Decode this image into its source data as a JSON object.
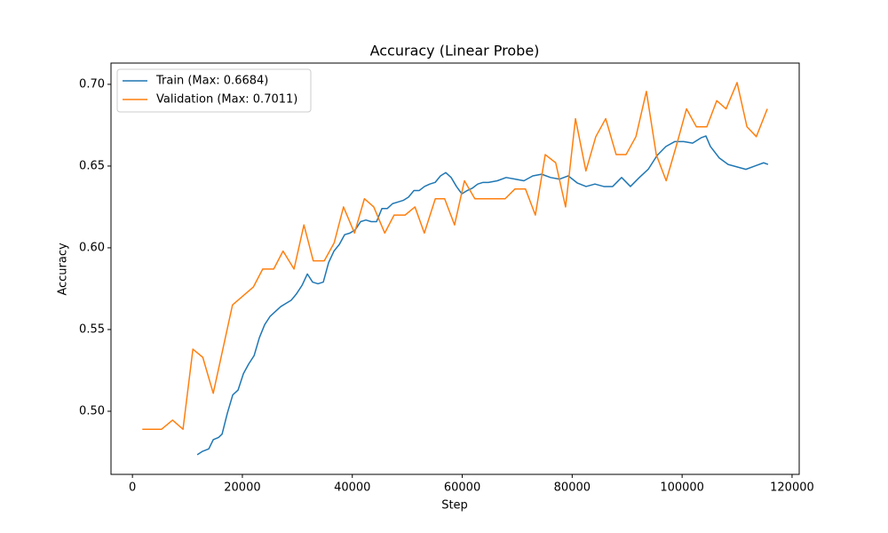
{
  "chart_data": {
    "type": "line",
    "title": "Accuracy (Linear Probe)",
    "xlabel": "Step",
    "ylabel": "Accuracy",
    "xlim": [
      -3900,
      121300
    ],
    "ylim": [
      0.4614,
      0.713
    ],
    "xticks": [
      0,
      20000,
      40000,
      60000,
      80000,
      100000,
      120000
    ],
    "yticks": [
      {
        "value": 0.5,
        "label": "0.50"
      },
      0.55,
      {
        "value": 0.6,
        "label": "0.60"
      },
      0.65,
      {
        "value": 0.7,
        "label": "0.70"
      }
    ],
    "grid": false,
    "legend": "upper-left",
    "series": [
      {
        "name": "Train (Max: 0.6684)",
        "color": "#1f77b4",
        "x": [
          11790,
          12760,
          13890,
          14700,
          15670,
          16310,
          17280,
          18250,
          19220,
          20190,
          21160,
          22130,
          23090,
          24060,
          25030,
          26000,
          26970,
          27940,
          28910,
          29880,
          30850,
          31820,
          32780,
          33750,
          34720,
          35690,
          36660,
          37630,
          38600,
          39570,
          40540,
          41510,
          42470,
          43440,
          44410,
          45380,
          46350,
          47320,
          48290,
          49260,
          50230,
          51200,
          52160,
          53130,
          54100,
          55070,
          56040,
          57010,
          57980,
          58950,
          59920,
          60890,
          61850,
          62820,
          63790,
          64760,
          66380,
          67990,
          69610,
          71220,
          72840,
          74450,
          76070,
          77680,
          79300,
          80910,
          82530,
          84140,
          85760,
          87370,
          88990,
          90600,
          92220,
          93830,
          95450,
          97060,
          98680,
          100290,
          101910,
          103520,
          104330,
          105140,
          106750,
          108370,
          109980,
          111600,
          113210,
          114830,
          115630
        ],
        "values": [
          0.4734,
          0.4755,
          0.477,
          0.4826,
          0.484,
          0.486,
          0.499,
          0.51,
          0.513,
          0.523,
          0.529,
          0.534,
          0.545,
          0.553,
          0.558,
          0.561,
          0.564,
          0.566,
          0.568,
          0.572,
          0.577,
          0.584,
          0.579,
          0.578,
          0.579,
          0.591,
          0.598,
          0.602,
          0.608,
          0.609,
          0.611,
          0.616,
          0.617,
          0.616,
          0.616,
          0.624,
          0.624,
          0.627,
          0.628,
          0.629,
          0.631,
          0.635,
          0.635,
          0.6375,
          0.639,
          0.64,
          0.644,
          0.646,
          0.643,
          0.6375,
          0.633,
          0.635,
          0.6365,
          0.639,
          0.64,
          0.64,
          0.641,
          0.643,
          0.642,
          0.641,
          0.644,
          0.645,
          0.643,
          0.642,
          0.644,
          0.6397,
          0.6375,
          0.639,
          0.6375,
          0.6375,
          0.643,
          0.6375,
          0.643,
          0.648,
          0.6565,
          0.662,
          0.665,
          0.665,
          0.664,
          0.6674,
          0.6684,
          0.662,
          0.655,
          0.651,
          0.6495,
          0.648,
          0.65,
          0.652,
          0.651
        ]
      },
      {
        "name": "Validation (Max: 0.7011)",
        "color": "#ff7f0e",
        "x": [
          1800,
          5300,
          7300,
          9200,
          11000,
          12800,
          14700,
          18200,
          22000,
          23700,
          25700,
          27400,
          29400,
          31200,
          32900,
          34900,
          36700,
          38400,
          40400,
          42200,
          43900,
          45900,
          47600,
          49600,
          51400,
          53100,
          55100,
          56800,
          58600,
          60400,
          62300,
          64100,
          66100,
          67800,
          69600,
          71500,
          73300,
          75100,
          77000,
          78800,
          80600,
          82500,
          84300,
          86100,
          88000,
          89800,
          91600,
          93500,
          95300,
          97100,
          99000,
          100800,
          102600,
          104500,
          106300,
          108000,
          110000,
          111800,
          113500,
          115500
        ],
        "values": [
          0.489,
          0.489,
          0.4946,
          0.489,
          0.538,
          0.533,
          0.511,
          0.565,
          0.576,
          0.587,
          0.587,
          0.598,
          0.587,
          0.614,
          0.592,
          0.592,
          0.603,
          0.625,
          0.609,
          0.63,
          0.625,
          0.609,
          0.62,
          0.62,
          0.625,
          0.609,
          0.63,
          0.63,
          0.614,
          0.641,
          0.63,
          0.63,
          0.63,
          0.63,
          0.636,
          0.636,
          0.62,
          0.657,
          0.652,
          0.625,
          0.679,
          0.647,
          0.668,
          0.679,
          0.657,
          0.657,
          0.668,
          0.6957,
          0.657,
          0.641,
          0.663,
          0.685,
          0.674,
          0.674,
          0.69,
          0.685,
          0.7011,
          0.674,
          0.668,
          0.685
        ]
      }
    ]
  }
}
